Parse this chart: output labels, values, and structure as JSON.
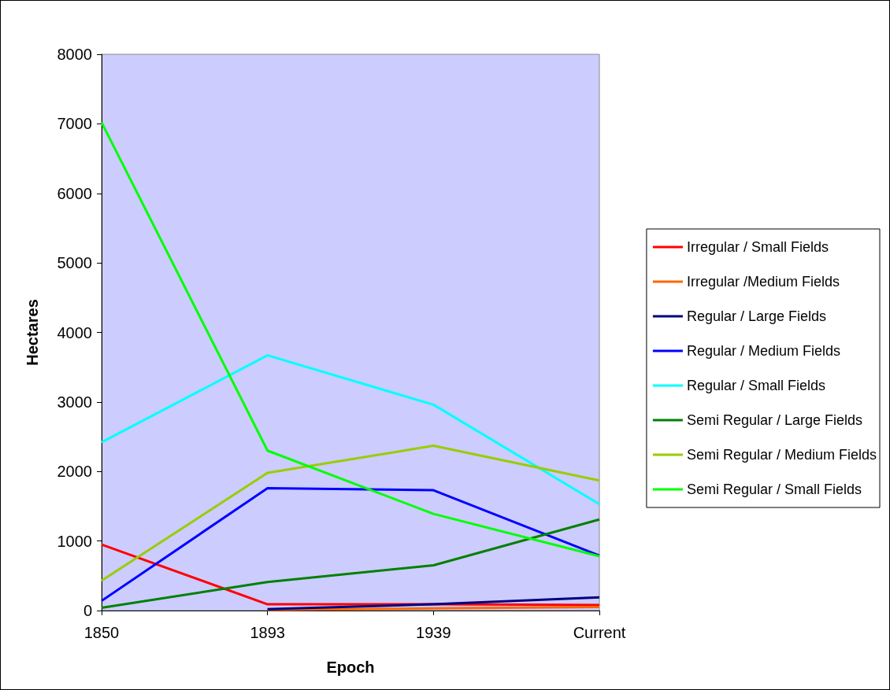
{
  "chart_data": {
    "type": "line",
    "xlabel": "Epoch",
    "ylabel": "Hectares",
    "categories": [
      "1850",
      "1893",
      "1939",
      "Current"
    ],
    "ylim": [
      0,
      8000
    ],
    "yticks": [
      0,
      1000,
      2000,
      3000,
      4000,
      5000,
      6000,
      7000,
      8000
    ],
    "grid": false,
    "legend": "right",
    "marker": "none",
    "line_style": "solid",
    "series": [
      {
        "name": "Irregular / Small Fields",
        "color": "#ff0000",
        "values": [
          950,
          90,
          90,
          80
        ]
      },
      {
        "name": "Irregular /Medium Fields",
        "color": "#ff6600",
        "values": [
          null,
          10,
          30,
          50
        ]
      },
      {
        "name": "Regular / Large Fields",
        "color": "#000080",
        "values": [
          null,
          20,
          90,
          190
        ]
      },
      {
        "name": "Regular / Medium Fields",
        "color": "#0000ff",
        "values": [
          140,
          1760,
          1730,
          790
        ]
      },
      {
        "name": "Regular / Small Fields",
        "color": "#00ffff",
        "values": [
          2420,
          3670,
          2960,
          1530
        ]
      },
      {
        "name": "Semi Regular / Large Fields",
        "color": "#008000",
        "values": [
          40,
          410,
          650,
          1310
        ]
      },
      {
        "name": "Semi Regular / Medium Fields",
        "color": "#99cc00",
        "values": [
          430,
          1980,
          2370,
          1870
        ]
      },
      {
        "name": "Semi Regular / Small Fields",
        "color": "#00ff00",
        "values": [
          7020,
          2300,
          1390,
          780
        ]
      }
    ]
  }
}
